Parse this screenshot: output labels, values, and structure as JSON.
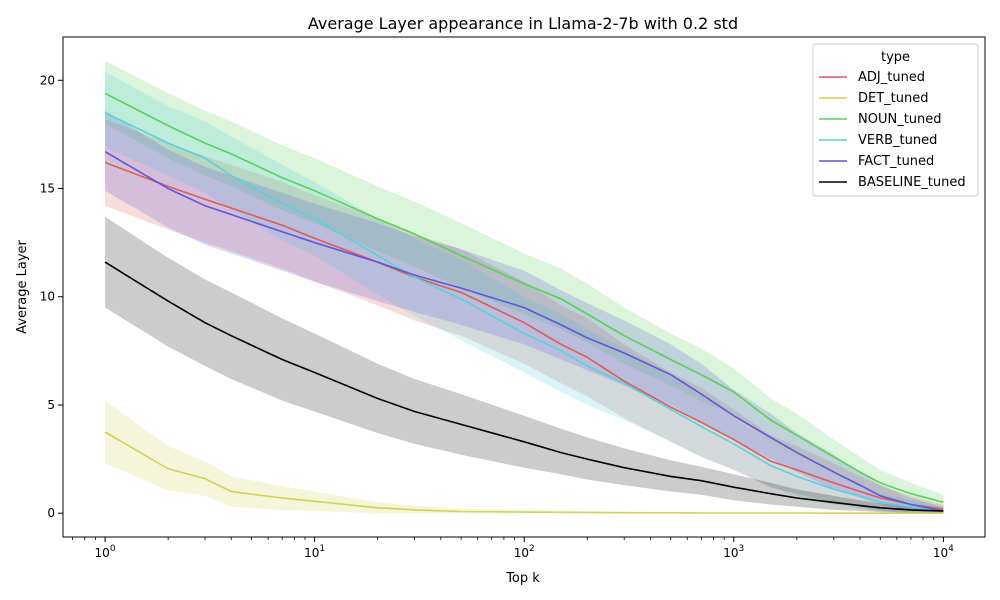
{
  "chart_data": {
    "type": "line",
    "title": "Average Layer appearance in Llama-2-7b with 0.2 std",
    "xlabel": "Top k",
    "ylabel": "Average Layer",
    "xscale": "log",
    "xlim": [
      0.63,
      15800
    ],
    "ylim": [
      -1.1,
      22
    ],
    "x_ticks": [
      {
        "value": 1,
        "base": "10",
        "exp": "0"
      },
      {
        "value": 10,
        "base": "10",
        "exp": "1"
      },
      {
        "value": 100,
        "base": "10",
        "exp": "2"
      },
      {
        "value": 1000,
        "base": "10",
        "exp": "3"
      },
      {
        "value": 10000,
        "base": "10",
        "exp": "4"
      }
    ],
    "y_ticks": [
      0,
      5,
      10,
      15,
      20
    ],
    "legend": {
      "title": "type",
      "position": "top-right"
    },
    "x": [
      1,
      2,
      3,
      4,
      7,
      10,
      20,
      30,
      50,
      100,
      150,
      200,
      300,
      500,
      700,
      1000,
      1500,
      2000,
      3000,
      4000,
      5000,
      7000,
      10000
    ],
    "series": [
      {
        "name": "ADJ_tuned",
        "color": "#db5f57",
        "values": [
          16.2,
          15.1,
          14.5,
          14.1,
          13.3,
          12.7,
          11.6,
          10.9,
          10.2,
          8.8,
          7.8,
          7.2,
          6.1,
          4.9,
          4.2,
          3.4,
          2.4,
          2.0,
          1.4,
          1.0,
          0.7,
          0.4,
          0.2
        ],
        "lower": [
          14.2,
          13.1,
          12.5,
          12.1,
          11.3,
          10.7,
          9.6,
          8.9,
          8.2,
          6.9,
          6.0,
          5.4,
          4.4,
          3.3,
          2.6,
          2.0,
          1.2,
          0.9,
          0.5,
          0.3,
          0.1,
          0.0,
          0.0
        ],
        "upper": [
          18.2,
          17.1,
          16.5,
          16.1,
          15.3,
          14.7,
          13.6,
          12.9,
          12.2,
          10.7,
          9.6,
          9.0,
          7.8,
          6.5,
          5.8,
          4.8,
          3.6,
          3.1,
          2.3,
          1.7,
          1.3,
          0.8,
          0.4
        ]
      },
      {
        "name": "DET_tuned",
        "color": "#d3d357",
        "values": [
          3.75,
          2.05,
          1.6,
          1.0,
          0.7,
          0.55,
          0.25,
          0.15,
          0.08,
          0.05,
          0.04,
          0.03,
          0.02,
          0.02,
          0.01,
          0.01,
          0.01,
          0.01,
          0.0,
          0.0,
          0.0,
          0.0,
          0.0
        ],
        "lower": [
          2.3,
          1.05,
          0.8,
          0.3,
          0.15,
          0.1,
          0.0,
          0.0,
          0.0,
          0.0,
          0.0,
          0.0,
          0.0,
          0.0,
          0.0,
          0.0,
          0.0,
          0.0,
          0.0,
          0.0,
          0.0,
          0.0,
          0.0
        ],
        "upper": [
          5.2,
          3.1,
          2.4,
          1.7,
          1.25,
          1.0,
          0.5,
          0.35,
          0.2,
          0.15,
          0.12,
          0.1,
          0.08,
          0.06,
          0.05,
          0.04,
          0.04,
          0.03,
          0.03,
          0.02,
          0.02,
          0.02,
          0.02
        ]
      },
      {
        "name": "NOUN_tuned",
        "color": "#57d357",
        "values": [
          19.4,
          17.9,
          17.1,
          16.6,
          15.5,
          14.9,
          13.6,
          12.9,
          11.9,
          10.6,
          9.9,
          9.2,
          8.2,
          7.1,
          6.4,
          5.6,
          4.3,
          3.6,
          2.6,
          1.9,
          1.4,
          0.9,
          0.5
        ],
        "lower": [
          18.0,
          16.4,
          15.6,
          15.1,
          14.0,
          13.4,
          12.1,
          11.4,
          10.4,
          9.2,
          8.5,
          7.9,
          6.9,
          5.9,
          5.2,
          4.5,
          3.3,
          2.6,
          1.8,
          1.2,
          0.8,
          0.4,
          0.1
        ],
        "upper": [
          20.9,
          19.4,
          18.6,
          18.1,
          17.0,
          16.4,
          15.1,
          14.4,
          13.4,
          12.0,
          11.3,
          10.6,
          9.5,
          8.3,
          7.6,
          6.7,
          5.3,
          4.6,
          3.4,
          2.6,
          2.0,
          1.4,
          0.85
        ]
      },
      {
        "name": "VERB_tuned",
        "color": "#57d3db",
        "values": [
          18.5,
          17.1,
          16.4,
          15.6,
          14.3,
          13.6,
          11.9,
          10.9,
          9.9,
          8.3,
          7.5,
          6.8,
          6.0,
          4.8,
          4.0,
          3.2,
          2.2,
          1.7,
          1.1,
          0.8,
          0.5,
          0.3,
          0.1
        ],
        "lower": [
          16.9,
          15.6,
          14.8,
          14.0,
          12.6,
          11.9,
          10.1,
          9.1,
          8.0,
          6.5,
          5.6,
          5.0,
          4.3,
          3.3,
          2.6,
          2.0,
          1.2,
          0.8,
          0.4,
          0.2,
          0.1,
          0.0,
          0.0
        ],
        "upper": [
          20.4,
          18.8,
          18.1,
          17.4,
          16.1,
          15.3,
          13.6,
          12.7,
          11.7,
          10.0,
          9.2,
          8.5,
          7.6,
          6.3,
          5.4,
          4.4,
          3.3,
          2.6,
          1.8,
          1.3,
          0.9,
          0.6,
          0.3
        ]
      },
      {
        "name": "FACT_tuned",
        "color": "#5f57db",
        "values": [
          16.7,
          15.0,
          14.2,
          13.8,
          13.0,
          12.5,
          11.6,
          11.0,
          10.4,
          9.5,
          8.7,
          8.1,
          7.4,
          6.4,
          5.5,
          4.5,
          3.5,
          2.8,
          1.9,
          1.3,
          0.8,
          0.4,
          0.1
        ],
        "lower": [
          14.9,
          13.2,
          12.4,
          12.0,
          11.2,
          10.7,
          9.8,
          9.3,
          8.7,
          7.8,
          7.1,
          6.6,
          5.9,
          5.0,
          4.2,
          3.4,
          2.5,
          1.9,
          1.1,
          0.7,
          0.4,
          0.1,
          0.0
        ],
        "upper": [
          18.6,
          16.8,
          16.0,
          15.6,
          14.8,
          14.3,
          13.4,
          12.8,
          12.2,
          11.2,
          10.3,
          9.7,
          8.9,
          7.8,
          6.9,
          5.7,
          4.6,
          3.7,
          2.7,
          1.9,
          1.3,
          0.7,
          0.3
        ]
      },
      {
        "name": "BASELINE_tuned",
        "color": "#000000",
        "values": [
          11.6,
          9.8,
          8.8,
          8.2,
          7.1,
          6.5,
          5.3,
          4.7,
          4.1,
          3.3,
          2.8,
          2.5,
          2.1,
          1.7,
          1.5,
          1.2,
          0.9,
          0.7,
          0.5,
          0.35,
          0.25,
          0.15,
          0.1
        ],
        "lower": [
          9.5,
          7.7,
          6.8,
          6.2,
          5.2,
          4.7,
          3.7,
          3.2,
          2.7,
          2.1,
          1.8,
          1.55,
          1.3,
          1.0,
          0.85,
          0.6,
          0.4,
          0.3,
          0.15,
          0.1,
          0.05,
          0.0,
          0.0
        ],
        "upper": [
          13.7,
          11.8,
          10.8,
          10.2,
          9.0,
          8.3,
          6.9,
          6.2,
          5.5,
          4.5,
          3.9,
          3.5,
          3.0,
          2.45,
          2.15,
          1.8,
          1.4,
          1.1,
          0.8,
          0.6,
          0.45,
          0.3,
          0.2
        ]
      }
    ]
  }
}
